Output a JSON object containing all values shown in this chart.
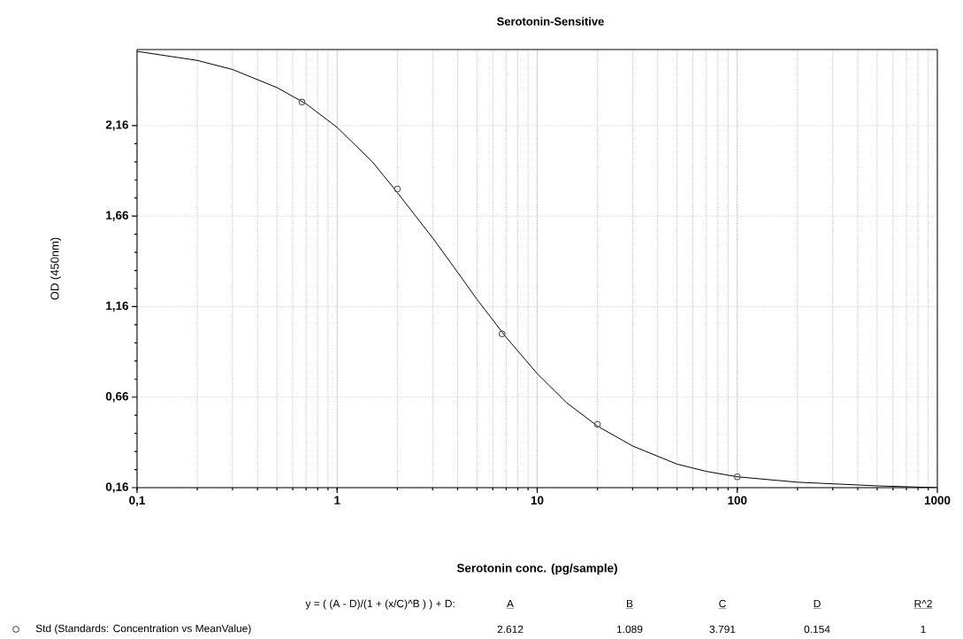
{
  "chart_data": {
    "type": "scatter",
    "title": "Serotonin-Sensitive",
    "xlabel": "Serotonin conc. (pg/sample)",
    "ylabel": "OD (450nm)",
    "log": "x",
    "xlim": [
      0.1,
      1000
    ],
    "ylim": [
      0.16,
      2.58
    ],
    "xticks": [
      {
        "value": 0.1,
        "label": "0,1"
      },
      1,
      10,
      100,
      1000
    ],
    "yticks": [
      {
        "value": 0.16,
        "label": "0,16"
      },
      {
        "value": 0.66,
        "label": "0,66"
      },
      {
        "value": 1.16,
        "label": "1,16"
      },
      {
        "value": 1.66,
        "label": "1,66"
      },
      {
        "value": 2.16,
        "label": "2,16"
      }
    ],
    "grid": true,
    "legend": "bottom",
    "series": [
      {
        "name": "Std (Standards: Concentration vs MeanValue)",
        "color": "#555555",
        "marker": "circle",
        "x": [
          0.667,
          2,
          6.67,
          20,
          100
        ],
        "values": [
          2.29,
          1.81,
          1.01,
          0.51,
          0.22
        ]
      },
      {
        "type": "line",
        "color": "#000000",
        "marker": "none",
        "line_style": "solid",
        "x": [
          0.1,
          0.2,
          0.3,
          0.5,
          0.7,
          1,
          1.5,
          2,
          3,
          4,
          5,
          7,
          10,
          14,
          20,
          30,
          50,
          70,
          100,
          200,
          500,
          1000
        ],
        "values": [
          2.57,
          2.52,
          2.47,
          2.37,
          2.28,
          2.15,
          1.96,
          1.79,
          1.54,
          1.35,
          1.2,
          0.99,
          0.79,
          0.63,
          0.5,
          0.39,
          0.29,
          0.25,
          0.22,
          0.19,
          0.17,
          0.16
        ]
      }
    ],
    "annotations": [
      "y = ( (A - D)/(1 + (x/C)^B ) ) + D:",
      "A",
      "B",
      "C",
      "D",
      "R^2",
      "2.612",
      "1.089",
      "3.791",
      "0.154",
      "1"
    ]
  }
}
